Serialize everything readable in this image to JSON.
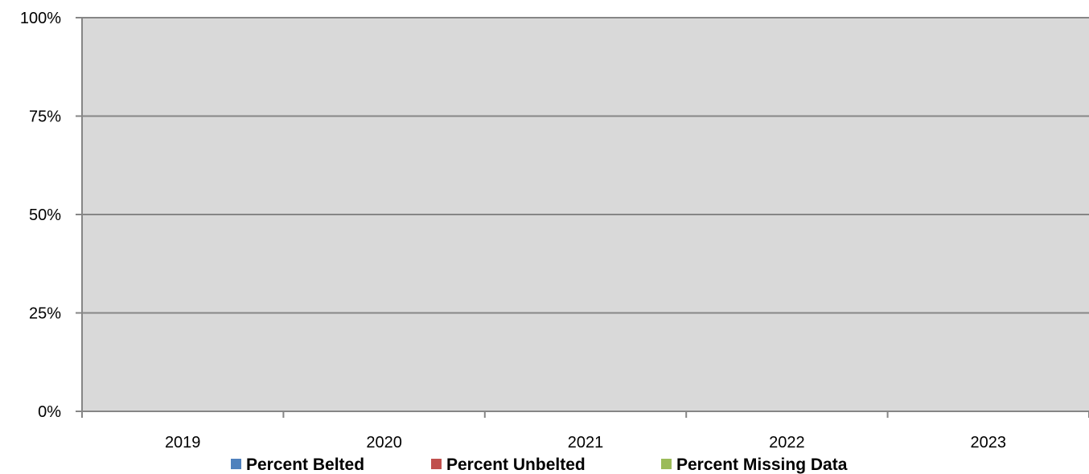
{
  "chart_data": {
    "type": "bar",
    "stacked": true,
    "categories": [
      "2019",
      "2020",
      "2021",
      "2022",
      "2023"
    ],
    "series": [
      {
        "name": "Percent Belted",
        "color": "#4F81BD",
        "values": [
          0,
          0,
          0,
          0,
          0
        ]
      },
      {
        "name": "Percent Unbelted",
        "color": "#C0504D",
        "values": [
          0,
          0,
          0,
          0,
          0
        ]
      },
      {
        "name": "Percent Missing Data",
        "color": "#9BBB59",
        "values": [
          0,
          0,
          0,
          0,
          0
        ]
      }
    ],
    "ylim": [
      0,
      100
    ],
    "yticks": [
      "0%",
      "25%",
      "50%",
      "75%",
      "100%"
    ],
    "ytick_values": [
      0,
      25,
      50,
      75,
      100
    ],
    "grid": true,
    "legend_position": "bottom",
    "plot_background": "#D9D9D9",
    "gridline_color": "#868686"
  }
}
